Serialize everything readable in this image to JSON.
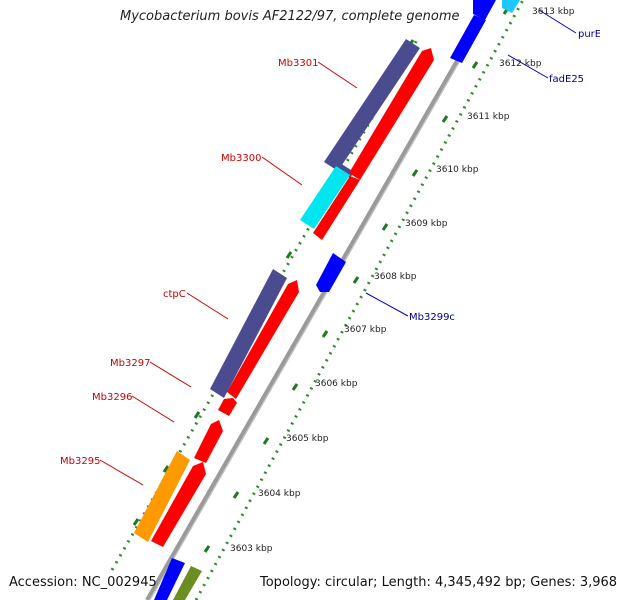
{
  "title": "Mycobacterium bovis AF2122/97, complete genome",
  "footer": {
    "accession": "Accession: NC_002945",
    "summary": "Topology: circular; Length: 4,345,492 bp; Genes: 3,968"
  },
  "ticks": [
    "3613 kbp",
    "3612 kbp",
    "3611 kbp",
    "3610 kbp",
    "3609 kbp",
    "3608 kbp",
    "3607 kbp",
    "3606 kbp",
    "3605 kbp",
    "3604 kbp",
    "3603 kbp"
  ],
  "gene_labels": {
    "Mb3301": "Mb3301",
    "Mb3300": "Mb3300",
    "ctpC": "ctpC",
    "Mb3297": "Mb3297",
    "Mb3296": "Mb3296",
    "Mb3295": "Mb3295",
    "Mb3299c": "Mb3299c",
    "purE": "purE",
    "fadE25": "fadE25"
  },
  "colors": {
    "forward_label": "#cc0000",
    "reverse_label": "#00008b",
    "cds_red": "#ff0000",
    "cog_purple": "#4b4b8f",
    "cog_cyan": "#00e5ee",
    "cog_orange": "#ff9900",
    "cog_olive": "#6b8e23",
    "reverse_blue": "#0000ff",
    "backbone": "#999999",
    "tick_green": "#228b22"
  }
}
